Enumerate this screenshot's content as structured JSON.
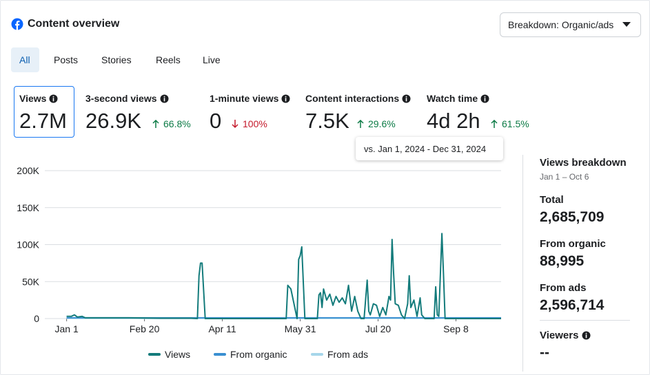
{
  "header": {
    "title": "Content overview",
    "breakdown": "Breakdown: Organic/ads"
  },
  "tabs": [
    "All",
    "Posts",
    "Stories",
    "Reels",
    "Live"
  ],
  "metrics": [
    {
      "label": "Views",
      "value": "2.7M"
    },
    {
      "label": "3-second views",
      "value": "26.9K",
      "change": "66.8%",
      "direction": "up"
    },
    {
      "label": "1-minute views",
      "value": "0",
      "change": "100%",
      "direction": "down"
    },
    {
      "label": "Content interactions",
      "value": "7.5K",
      "change": "29.6%",
      "direction": "up"
    },
    {
      "label": "Watch time",
      "value": "4d 2h",
      "change": "61.5%",
      "direction": "up"
    }
  ],
  "tooltip": "vs. Jan 1, 2024 - Dec 31, 2024",
  "sidebar": {
    "title": "Views breakdown",
    "subtitle": "Jan 1 – Oct 6",
    "stats": [
      {
        "label": "Total",
        "value": "2,685,709"
      },
      {
        "label": "From organic",
        "value": "88,995"
      },
      {
        "label": "From ads",
        "value": "2,596,714"
      },
      {
        "label": "Viewers",
        "value": "--"
      }
    ]
  },
  "chart_data": {
    "type": "line",
    "x": [
      0,
      3,
      5,
      7,
      10,
      12,
      20,
      40,
      60,
      80,
      84,
      85,
      86,
      87,
      89,
      100,
      120,
      141,
      142,
      144,
      146,
      148,
      149,
      150,
      151,
      153,
      161,
      162,
      163,
      164,
      165,
      167,
      169,
      171,
      173,
      175,
      177,
      179,
      181,
      183,
      185,
      187,
      189,
      191,
      193,
      194,
      195,
      197,
      199,
      201,
      203,
      205,
      207,
      208,
      209,
      210,
      211,
      213,
      215,
      217,
      219,
      220,
      221,
      223,
      225,
      227,
      228,
      230,
      236,
      237,
      238,
      239,
      240,
      241,
      242,
      243,
      250,
      279
    ],
    "xlim": [
      -14,
      279
    ],
    "xticks": [
      {
        "value": 0,
        "label": "Jan 1"
      },
      {
        "value": 50,
        "label": "Feb 20"
      },
      {
        "value": 100,
        "label": "Apr 11"
      },
      {
        "value": 150,
        "label": "May 31"
      },
      {
        "value": 200,
        "label": "Jul 20"
      },
      {
        "value": 250,
        "label": "Sep 8"
      }
    ],
    "ylim": [
      0,
      200000
    ],
    "yticks": [
      0,
      {
        "value": 50000,
        "label": "50K"
      },
      {
        "value": 100000,
        "label": "100K"
      },
      {
        "value": 150000,
        "label": "150K"
      },
      {
        "value": 200000,
        "label": "200K"
      }
    ],
    "grid": true,
    "series": [
      {
        "name": "Views",
        "color": "#137b7b",
        "values": [
          3000,
          3000,
          5000,
          2000,
          3000,
          1000,
          1000,
          1000,
          500,
          500,
          0,
          58000,
          75000,
          75000,
          0,
          0,
          0,
          0,
          45000,
          40000,
          20000,
          0,
          80000,
          85000,
          97000,
          0,
          0,
          32000,
          35000,
          15000,
          40000,
          25000,
          33000,
          18000,
          30000,
          22000,
          28000,
          20000,
          45000,
          10000,
          30000,
          10000,
          0,
          0,
          52000,
          10000,
          5000,
          20000,
          18000,
          3000,
          15000,
          5000,
          30000,
          25000,
          107000,
          60000,
          20000,
          18000,
          5000,
          0,
          20000,
          58000,
          15000,
          25000,
          3000,
          28000,
          5000,
          0,
          0,
          43000,
          5000,
          3000,
          60000,
          115000,
          60000,
          0,
          0,
          0
        ]
      },
      {
        "name": "From organic",
        "color": "#3a8fd1",
        "values": [
          1000,
          1000,
          1000,
          1000,
          1000,
          1000,
          1000,
          1000,
          1000,
          1000,
          1000,
          1000,
          1000,
          1000,
          1000,
          1000,
          1000,
          1000,
          1000,
          1000,
          1000,
          1000,
          1000,
          1000,
          1000,
          1000,
          1000,
          1000,
          1000,
          1000,
          1000,
          1000,
          1000,
          1000,
          1000,
          1000,
          1000,
          1000,
          1000,
          1000,
          1000,
          1000,
          1000,
          1000,
          1000,
          1000,
          1000,
          1000,
          1000,
          1000,
          1000,
          1000,
          1000,
          1000,
          1000,
          1000,
          1000,
          1000,
          1000,
          1000,
          1000,
          1000,
          1000,
          1000,
          1000,
          1000,
          1000,
          1000,
          1000,
          1000,
          1000,
          1000,
          1000,
          1000,
          1000,
          1000,
          1000,
          1000
        ]
      },
      {
        "name": "From ads",
        "color": "#a6d6ea",
        "values": [
          300,
          300,
          300,
          300,
          300,
          300,
          300,
          300,
          300,
          300,
          300,
          300,
          300,
          300,
          300,
          300,
          300,
          300,
          300,
          300,
          300,
          300,
          300,
          300,
          300,
          300,
          300,
          300,
          300,
          300,
          300,
          300,
          300,
          300,
          300,
          300,
          300,
          300,
          300,
          300,
          300,
          300,
          300,
          300,
          300,
          300,
          300,
          300,
          300,
          300,
          300,
          300,
          300,
          300,
          300,
          300,
          300,
          300,
          300,
          300,
          300,
          300,
          300,
          300,
          300,
          300,
          300,
          300,
          300,
          300,
          300,
          300,
          300,
          300,
          300,
          300,
          300,
          300
        ]
      }
    ]
  }
}
